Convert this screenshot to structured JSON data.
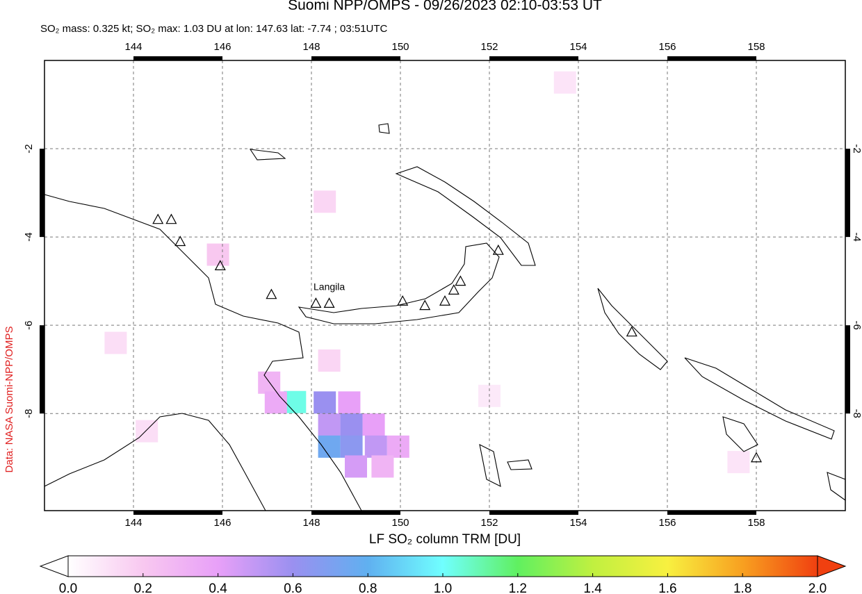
{
  "header": {
    "title": "Suomi NPP/OMPS - 09/26/2023 02:10-03:53 UT",
    "subtitle": "SO₂ mass: 0.325 kt; SO₂ max: 1.03 DU at lon: 147.63 lat: -7.74 ; 03:51UTC"
  },
  "side_label": "Data: NASA Suomi-NPP/OMPS",
  "map": {
    "xlim": [
      142,
      160
    ],
    "ylim": [
      -10.2,
      0
    ],
    "xticks": [
      144,
      146,
      148,
      150,
      152,
      154,
      156,
      158
    ],
    "yticks": [
      -2,
      -4,
      -6,
      -8
    ],
    "grid": true,
    "volcano_label": {
      "text": "Langila",
      "lon": 148.4,
      "lat": -5.2
    },
    "volcanoes": [
      [
        144.55,
        -3.6
      ],
      [
        144.85,
        -3.6
      ],
      [
        145.05,
        -4.1
      ],
      [
        145.95,
        -4.65
      ],
      [
        147.1,
        -5.3
      ],
      [
        148.1,
        -5.5
      ],
      [
        148.4,
        -5.5
      ],
      [
        150.05,
        -5.45
      ],
      [
        150.55,
        -5.55
      ],
      [
        151.0,
        -5.45
      ],
      [
        151.2,
        -5.2
      ],
      [
        151.35,
        -5.0
      ],
      [
        152.2,
        -4.3
      ],
      [
        155.2,
        -6.15
      ],
      [
        158.0,
        -9.0
      ]
    ],
    "so2_cells": [
      {
        "lon": 147.63,
        "lat": -7.74,
        "value": 1.03
      },
      {
        "lon": 148.3,
        "lat": -7.75,
        "value": 0.6
      },
      {
        "lon": 148.85,
        "lat": -7.75,
        "value": 0.4
      },
      {
        "lon": 148.4,
        "lat": -8.25,
        "value": 0.5
      },
      {
        "lon": 148.9,
        "lat": -8.25,
        "value": 0.6
      },
      {
        "lon": 149.4,
        "lat": -8.25,
        "value": 0.4
      },
      {
        "lon": 148.4,
        "lat": -8.75,
        "value": 0.75
      },
      {
        "lon": 148.9,
        "lat": -8.75,
        "value": 0.65
      },
      {
        "lon": 149.45,
        "lat": -8.75,
        "value": 0.5
      },
      {
        "lon": 149.95,
        "lat": -8.75,
        "value": 0.35
      },
      {
        "lon": 147.05,
        "lat": -7.3,
        "value": 0.3
      },
      {
        "lon": 147.2,
        "lat": -7.75,
        "value": 0.35
      },
      {
        "lon": 149.0,
        "lat": -9.2,
        "value": 0.45
      },
      {
        "lon": 149.6,
        "lat": -9.2,
        "value": 0.3
      },
      {
        "lon": 145.9,
        "lat": -4.4,
        "value": 0.2
      },
      {
        "lon": 148.3,
        "lat": -3.2,
        "value": 0.15
      },
      {
        "lon": 148.4,
        "lat": -6.8,
        "value": 0.15
      },
      {
        "lon": 143.6,
        "lat": -6.4,
        "value": 0.12
      },
      {
        "lon": 152.0,
        "lat": -7.6,
        "value": 0.08
      },
      {
        "lon": 153.7,
        "lat": -0.5,
        "value": 0.1
      },
      {
        "lon": 157.6,
        "lat": -9.1,
        "value": 0.1
      },
      {
        "lon": 144.3,
        "lat": -8.4,
        "value": 0.12
      }
    ]
  },
  "colorbar": {
    "label": "LF SO₂ column TRM [DU]",
    "lim": [
      0,
      2
    ],
    "colors": [
      "#ffffff",
      "#f8c8f0",
      "#e8a0f8",
      "#9a90f0",
      "#60b0f0",
      "#70ffff",
      "#60f060",
      "#c0f040",
      "#f8f040",
      "#f8a020",
      "#f04010"
    ],
    "ticks": [
      {
        "value": 0,
        "label": "0.0"
      },
      {
        "value": 0.2,
        "label": "0.2"
      },
      {
        "value": 0.4,
        "label": "0.4"
      },
      {
        "value": 0.6,
        "label": "0.6"
      },
      {
        "value": 0.8,
        "label": "0.8"
      },
      {
        "value": 1,
        "label": "1.0"
      },
      {
        "value": 1.2,
        "label": "1.2"
      },
      {
        "value": 1.4,
        "label": "1.4"
      },
      {
        "value": 1.6,
        "label": "1.6"
      },
      {
        "value": 1.8,
        "label": "1.8"
      },
      {
        "value": 2,
        "label": "2.0"
      }
    ]
  }
}
